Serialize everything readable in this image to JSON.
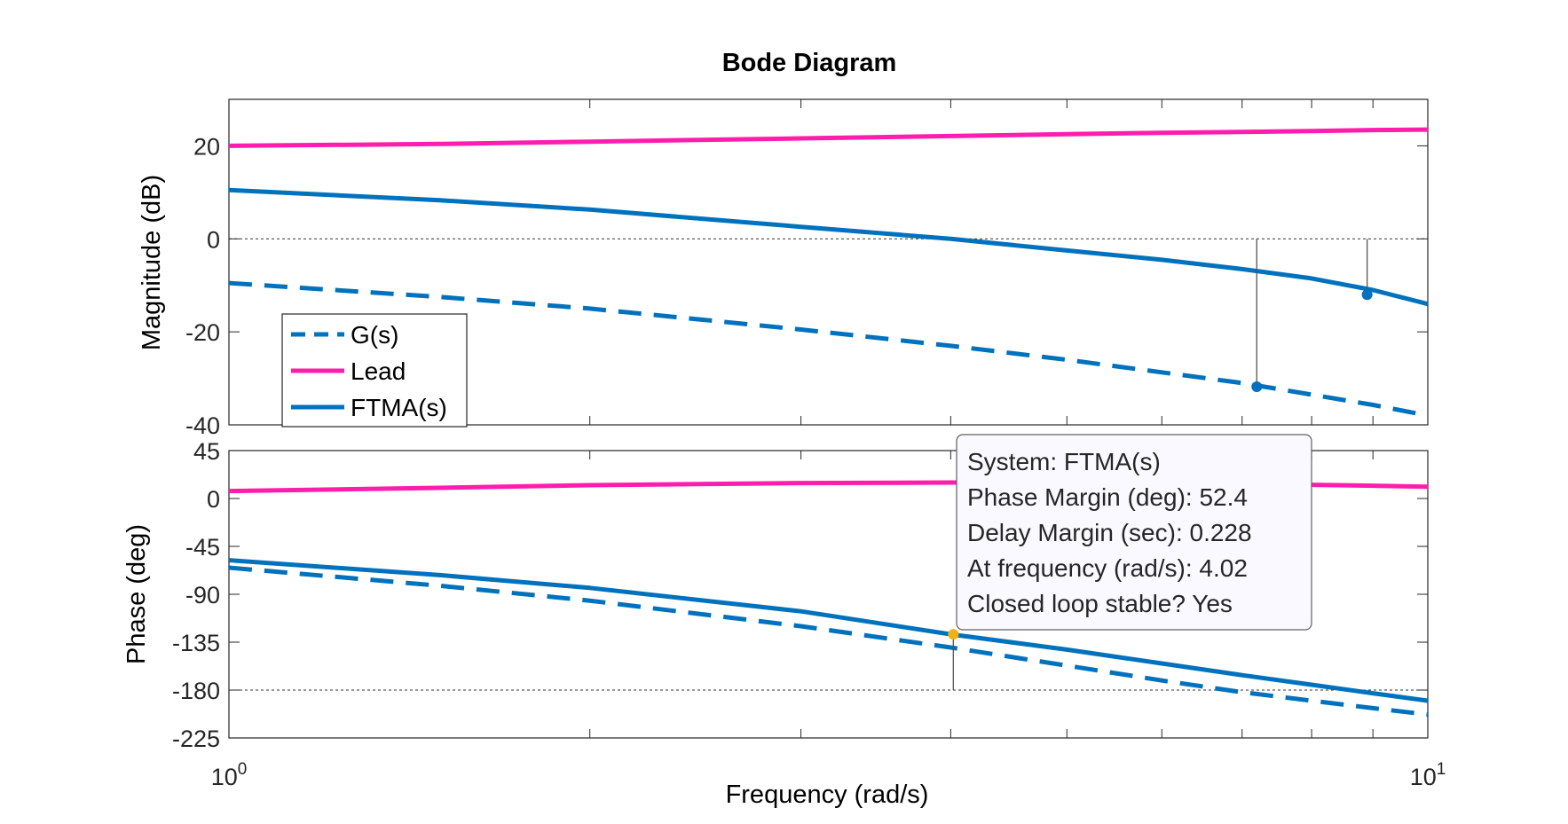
{
  "chart_data": {
    "type": "line",
    "title": "Bode Diagram",
    "xlabel": "Frequency  (rad/s)",
    "x_scale": "log",
    "xlim": [
      1,
      10
    ],
    "x_ticks": [
      {
        "base": "10",
        "exp": "0"
      },
      {
        "base": "10",
        "exp": "1"
      }
    ],
    "grid": false,
    "legend_position": "lower-left of magnitude plot",
    "colors": {
      "g": "#0072BD",
      "lead": "#FF1DAE",
      "ftma": "#0072BD",
      "datatip_marker": "#EDB120"
    },
    "magnitude": {
      "ylabel": "Magnitude (dB)",
      "ylim": [
        -40,
        30
      ],
      "yticks": [
        -40,
        -20,
        0,
        20
      ],
      "reference_line": 0,
      "series": [
        {
          "name": "G(s)",
          "style": "dashed",
          "x": [
            1,
            1.5,
            2,
            3,
            4,
            5,
            6,
            7,
            8,
            9,
            10
          ],
          "y": [
            -9.5,
            -12.5,
            -15,
            -19.5,
            -23,
            -26,
            -28.7,
            -31,
            -33.5,
            -35.7,
            -38
          ]
        },
        {
          "name": "Lead",
          "style": "solid",
          "x": [
            1,
            1.5,
            2,
            3,
            4,
            5,
            6,
            7,
            8,
            9,
            10
          ],
          "y": [
            20,
            20.4,
            20.9,
            21.6,
            22.1,
            22.5,
            22.8,
            23,
            23.2,
            23.4,
            23.5
          ]
        },
        {
          "name": "FTMA(s)",
          "style": "solid",
          "x": [
            1,
            1.5,
            2,
            3,
            4,
            5,
            6,
            7,
            8,
            9,
            10
          ],
          "y": [
            10.5,
            8.3,
            6.3,
            2.6,
            0,
            -2.5,
            -4.5,
            -6.5,
            -8.5,
            -11,
            -14
          ]
        }
      ],
      "markers": [
        {
          "x": 7.2,
          "y": -31.8
        },
        {
          "x": 8.9,
          "y": -12
        }
      ]
    },
    "phase": {
      "ylabel": "Phase (deg)",
      "ylim": [
        -225,
        45
      ],
      "yticks": [
        45,
        0,
        -45,
        -90,
        -135,
        -180,
        -225
      ],
      "reference_line": -180,
      "series": [
        {
          "name": "G(s)",
          "style": "dashed",
          "x": [
            1,
            1.5,
            2,
            3,
            4,
            5,
            6,
            7,
            8,
            9,
            10
          ],
          "y": [
            -65,
            -82,
            -96,
            -120,
            -140,
            -157,
            -171,
            -182,
            -190,
            -197,
            -203
          ]
        },
        {
          "name": "Lead",
          "style": "solid",
          "x": [
            1,
            1.5,
            2,
            3,
            4,
            5,
            6,
            7,
            8,
            9,
            10
          ],
          "y": [
            7,
            10,
            12.5,
            14.5,
            15,
            14.8,
            14.2,
            13.5,
            12.8,
            12,
            11
          ]
        },
        {
          "name": "FTMA(s)",
          "style": "solid",
          "x": [
            1,
            1.5,
            2,
            3,
            4,
            5,
            6,
            7,
            8,
            9,
            10
          ],
          "y": [
            -58,
            -72,
            -84,
            -106,
            -127.6,
            -142,
            -155,
            -166,
            -175,
            -183,
            -190
          ]
        }
      ],
      "markers": [
        {
          "x": 4.02,
          "y": -127.6,
          "color": "#EDB120"
        }
      ]
    },
    "datatip": {
      "lines": [
        "System: FTMA(s)",
        "Phase Margin (deg): 52.4",
        "Delay Margin (sec): 0.228",
        "At frequency (rad/s): 4.02",
        "Closed loop stable? Yes"
      ]
    }
  }
}
